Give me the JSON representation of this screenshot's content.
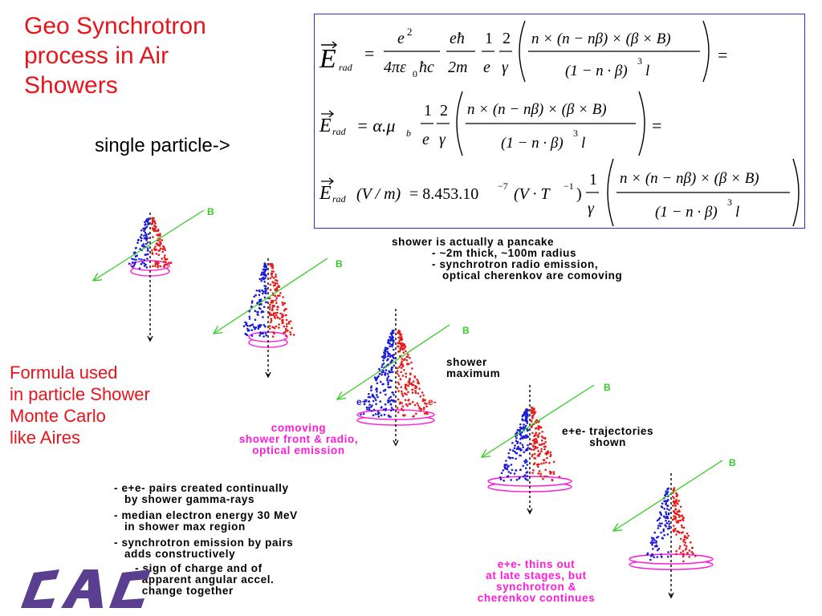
{
  "title": {
    "lines": [
      "Geo Synchrotron",
      "process in Air",
      "Showers"
    ]
  },
  "single_particle": "single particle->",
  "formula": {
    "E": "E",
    "rad": "rad",
    "eq1": {
      "e2": "e",
      "sq": "2",
      "den1": "4πε",
      "den1_sub": "0",
      "den1_tail": "ħc",
      "ehbar": "eħ",
      "two_m": "2m",
      "one": "1",
      "e": "e",
      "two": "2",
      "gamma": "γ",
      "num": "n × (n − nβ) × (β × B)",
      "den": "(1 − n · β)",
      "cube": "3",
      "l": "l",
      "equals": "="
    },
    "eq2": {
      "alpha_mu": "= α.μ",
      "b": "b",
      "one": "1",
      "e": "e",
      "two": "2",
      "gamma": "γ",
      "num": "n × (n − nβ) × (β × B)",
      "den": "(1 − n · β)",
      "cube": "3",
      "l": "l",
      "equals": "="
    },
    "eq3": {
      "units": "(V / m)",
      "const": "= 8.453.10",
      "exp": "−7",
      "unit_vt": "(V · T",
      "unit_exp": "−1",
      "unit_close": ")",
      "one": "1",
      "gamma": "γ",
      "num": "n × (n − nβ) × (β × B)",
      "den": "(1 − n · β)",
      "cube": "3",
      "l": "l"
    }
  },
  "left_text": {
    "lines": [
      "Formula used",
      "in particle Shower",
      "Monte Carlo",
      "like Aires"
    ]
  },
  "pancake": {
    "lines": [
      "shower is actually a pancake",
      "- ~2m thick, ~100m radius",
      "- synchrotron radio emission,",
      "   optical cherenkov are comoving"
    ]
  },
  "shower_max": {
    "lines": [
      "shower",
      "maximum"
    ]
  },
  "traj": {
    "lines": [
      "e+e- trajectories",
      "shown"
    ]
  },
  "comoving": {
    "lines": [
      "comoving",
      "shower front & radio,",
      "optical emission"
    ]
  },
  "bullets": {
    "lines": [
      "- e+e- pairs created continually",
      "   by shower gamma-rays",
      "- median electron energy 30 MeV",
      "   in shower max region",
      "- synchrotron emission by pairs",
      "   adds constructively",
      "      - sign of charge and of",
      "        apparent angular accel.",
      "        change together"
    ]
  },
  "thins": {
    "lines": [
      "e+e- thins out",
      "at late stages, but",
      "synchrotron &",
      "cherenkov continues"
    ]
  },
  "labels": {
    "B": "B",
    "e_plus": "e+",
    "e_minus": "e-"
  },
  "colors": {
    "title_red": "#e8141c",
    "magenta": "#ff1ad9",
    "field_green": "#33cc22",
    "positron_blue": "#1a1ad9",
    "electron_red": "#e81a1a",
    "formula_border": "#3030c0",
    "logo_purple": "#5a3e8f"
  }
}
